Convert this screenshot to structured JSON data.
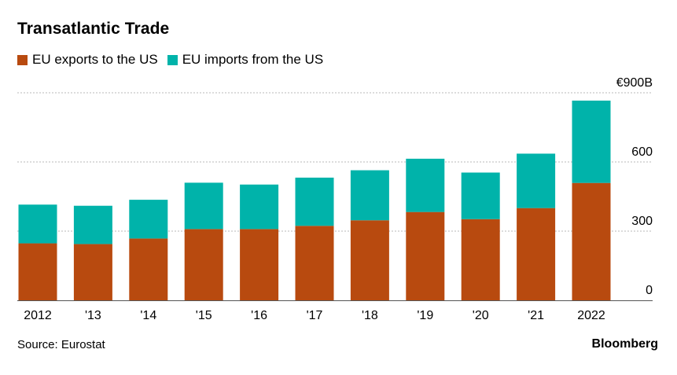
{
  "title": "Transatlantic Trade",
  "source": "Source: Eurostat",
  "brand": "Bloomberg",
  "colors": {
    "exports": "#b84a0f",
    "imports": "#00b3aa",
    "grid": "#b8b8b8",
    "baseline": "#555555"
  },
  "chart_data": {
    "type": "bar",
    "stacked": true,
    "categories": [
      "2012",
      "'13",
      "'14",
      "'15",
      "'16",
      "'17",
      "'18",
      "'19",
      "'20",
      "'21",
      "2022"
    ],
    "series": [
      {
        "name": "EU exports to the US",
        "values": [
          247,
          244,
          268,
          309,
          309,
          323,
          347,
          383,
          352,
          400,
          509
        ]
      },
      {
        "name": "EU imports from the US",
        "values": [
          168,
          166,
          168,
          201,
          193,
          209,
          217,
          231,
          202,
          236,
          357
        ]
      }
    ],
    "yticks": [
      "0",
      "300",
      "600",
      "€900B"
    ],
    "ylim": [
      0,
      900
    ],
    "grid": true,
    "legend_position": "top-left"
  }
}
